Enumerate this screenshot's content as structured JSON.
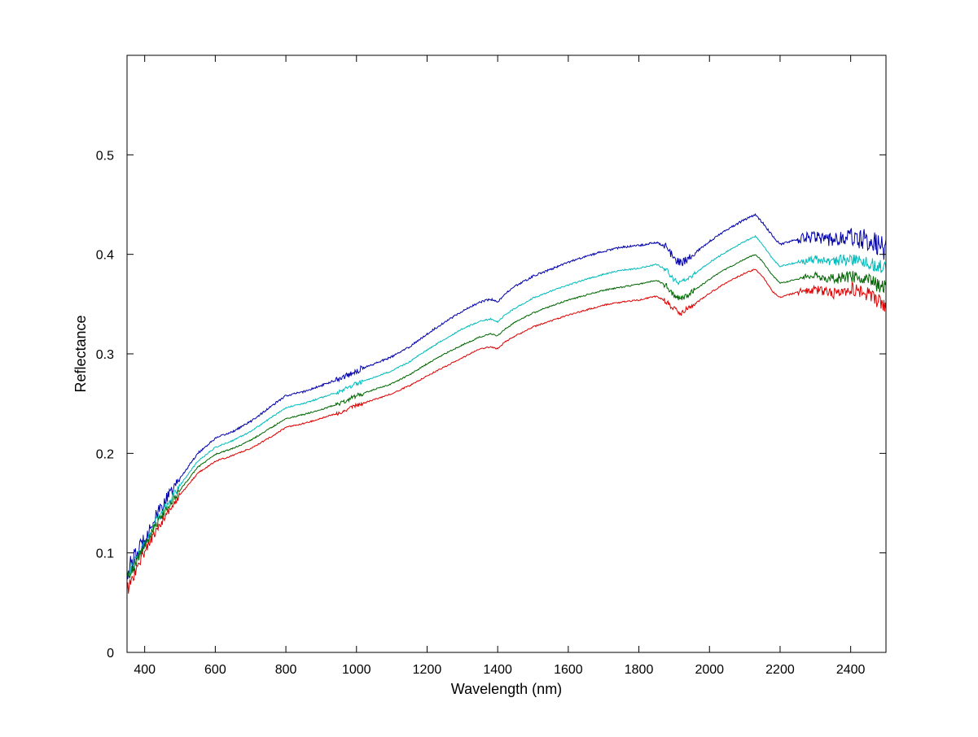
{
  "chart_data": {
    "type": "line",
    "title": "",
    "xlabel": "Wavelength (nm)",
    "ylabel": "Reflectance",
    "xlim": [
      350,
      2500
    ],
    "ylim": [
      0,
      0.6
    ],
    "xticks": [
      400,
      600,
      800,
      1000,
      1200,
      1400,
      1600,
      1800,
      2000,
      2200,
      2400
    ],
    "yticks": [
      0,
      0.1,
      0.2,
      0.3,
      0.4,
      0.5
    ],
    "xtick_labels": [
      "400",
      "600",
      "800",
      "1000",
      "1200",
      "1400",
      "1600",
      "1800",
      "2000",
      "2200",
      "2400"
    ],
    "ytick_labels": [
      "0",
      "0.1",
      "0.2",
      "0.3",
      "0.4",
      "0.5"
    ],
    "grid": false,
    "legend": "none",
    "x": [
      350,
      400,
      450,
      500,
      550,
      600,
      650,
      700,
      750,
      800,
      850,
      900,
      950,
      1000,
      1050,
      1100,
      1150,
      1200,
      1250,
      1300,
      1350,
      1380,
      1400,
      1420,
      1450,
      1500,
      1550,
      1600,
      1650,
      1700,
      1750,
      1800,
      1850,
      1880,
      1900,
      1920,
      1950,
      2000,
      2050,
      2100,
      2130,
      2150,
      2180,
      2200,
      2250,
      2300,
      2350,
      2400,
      2450,
      2500
    ],
    "series": [
      {
        "color": "#0000aa",
        "noise": 0.003,
        "values": [
          0.08,
          0.115,
          0.148,
          0.175,
          0.2,
          0.215,
          0.222,
          0.232,
          0.245,
          0.258,
          0.262,
          0.268,
          0.275,
          0.283,
          0.29,
          0.297,
          0.307,
          0.32,
          0.332,
          0.343,
          0.352,
          0.355,
          0.352,
          0.36,
          0.368,
          0.378,
          0.385,
          0.392,
          0.398,
          0.403,
          0.407,
          0.409,
          0.412,
          0.407,
          0.396,
          0.391,
          0.399,
          0.413,
          0.425,
          0.435,
          0.44,
          0.432,
          0.418,
          0.41,
          0.415,
          0.418,
          0.415,
          0.418,
          0.414,
          0.405
        ]
      },
      {
        "color": "#00bbbb",
        "noise": 0.002,
        "values": [
          0.077,
          0.11,
          0.142,
          0.168,
          0.192,
          0.206,
          0.213,
          0.222,
          0.234,
          0.246,
          0.25,
          0.256,
          0.262,
          0.27,
          0.276,
          0.283,
          0.292,
          0.304,
          0.315,
          0.325,
          0.333,
          0.335,
          0.332,
          0.339,
          0.346,
          0.356,
          0.363,
          0.369,
          0.375,
          0.38,
          0.384,
          0.386,
          0.39,
          0.384,
          0.374,
          0.371,
          0.378,
          0.392,
          0.403,
          0.413,
          0.418,
          0.41,
          0.395,
          0.388,
          0.392,
          0.395,
          0.392,
          0.396,
          0.392,
          0.387
        ]
      },
      {
        "color": "#006600",
        "noise": 0.002,
        "values": [
          0.075,
          0.107,
          0.138,
          0.163,
          0.186,
          0.199,
          0.205,
          0.213,
          0.224,
          0.235,
          0.239,
          0.244,
          0.25,
          0.258,
          0.264,
          0.27,
          0.279,
          0.29,
          0.3,
          0.309,
          0.317,
          0.32,
          0.318,
          0.325,
          0.332,
          0.341,
          0.348,
          0.354,
          0.359,
          0.364,
          0.367,
          0.37,
          0.374,
          0.368,
          0.358,
          0.355,
          0.362,
          0.375,
          0.386,
          0.395,
          0.4,
          0.393,
          0.378,
          0.371,
          0.375,
          0.379,
          0.375,
          0.378,
          0.373,
          0.366
        ]
      },
      {
        "color": "#dd0000",
        "noise": 0.002,
        "values": [
          0.062,
          0.102,
          0.132,
          0.158,
          0.18,
          0.192,
          0.198,
          0.205,
          0.215,
          0.226,
          0.23,
          0.235,
          0.241,
          0.248,
          0.254,
          0.26,
          0.268,
          0.278,
          0.287,
          0.296,
          0.305,
          0.307,
          0.305,
          0.312,
          0.318,
          0.327,
          0.333,
          0.339,
          0.344,
          0.349,
          0.352,
          0.354,
          0.358,
          0.352,
          0.345,
          0.341,
          0.348,
          0.361,
          0.372,
          0.381,
          0.385,
          0.378,
          0.362,
          0.357,
          0.362,
          0.365,
          0.36,
          0.366,
          0.36,
          0.348
        ]
      }
    ]
  }
}
